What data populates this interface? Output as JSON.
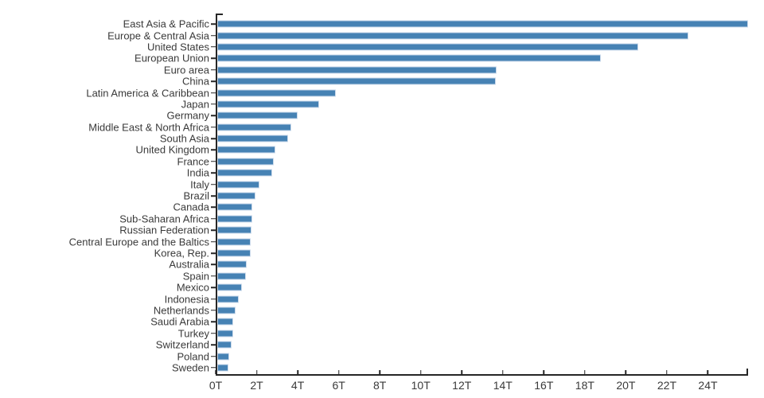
{
  "chart_data": {
    "type": "bar",
    "orientation": "horizontal",
    "title": "",
    "xlabel": "",
    "ylabel": "",
    "unit": "trillions (T)",
    "xlim": [
      0,
      25.96
    ],
    "grid": false,
    "legend": false,
    "x_ticks": [
      {
        "value": 0,
        "label": "0T"
      },
      {
        "value": 2,
        "label": "2T"
      },
      {
        "value": 4,
        "label": "4T"
      },
      {
        "value": 6,
        "label": "6T"
      },
      {
        "value": 8,
        "label": "8T"
      },
      {
        "value": 10,
        "label": "10T"
      },
      {
        "value": 12,
        "label": "12T"
      },
      {
        "value": 14,
        "label": "14T"
      },
      {
        "value": 16,
        "label": "16T"
      },
      {
        "value": 18,
        "label": "18T"
      },
      {
        "value": 20,
        "label": "20T"
      },
      {
        "value": 22,
        "label": "22T"
      },
      {
        "value": 24,
        "label": "24T"
      }
    ],
    "categories": [
      "East Asia & Pacific",
      "Europe & Central Asia",
      "United States",
      "European Union",
      "Euro area",
      "China",
      "Latin America & Caribbean",
      "Japan",
      "Germany",
      "Middle East & North Africa",
      "South Asia",
      "United Kingdom",
      "France",
      "India",
      "Italy",
      "Brazil",
      "Canada",
      "Sub-Saharan Africa",
      "Russian Federation",
      "Central Europe and the Baltics",
      "Korea, Rep.",
      "Australia",
      "Spain",
      "Mexico",
      "Indonesia",
      "Netherlands",
      "Saudi Arabia",
      "Turkey",
      "Switzerland",
      "Poland",
      "Sweden"
    ],
    "values": [
      25.96,
      23.05,
      20.58,
      18.77,
      13.67,
      13.61,
      5.78,
      4.97,
      3.95,
      3.61,
      3.46,
      2.86,
      2.78,
      2.7,
      2.08,
      1.87,
      1.71,
      1.7,
      1.66,
      1.63,
      1.62,
      1.43,
      1.42,
      1.22,
      1.04,
      0.91,
      0.79,
      0.77,
      0.71,
      0.59,
      0.56
    ],
    "colors": {
      "bar_fill": "#4682B4",
      "bar_edge": "#cbdaeb",
      "axis": "#262626",
      "text": "#3a3a3a"
    }
  }
}
